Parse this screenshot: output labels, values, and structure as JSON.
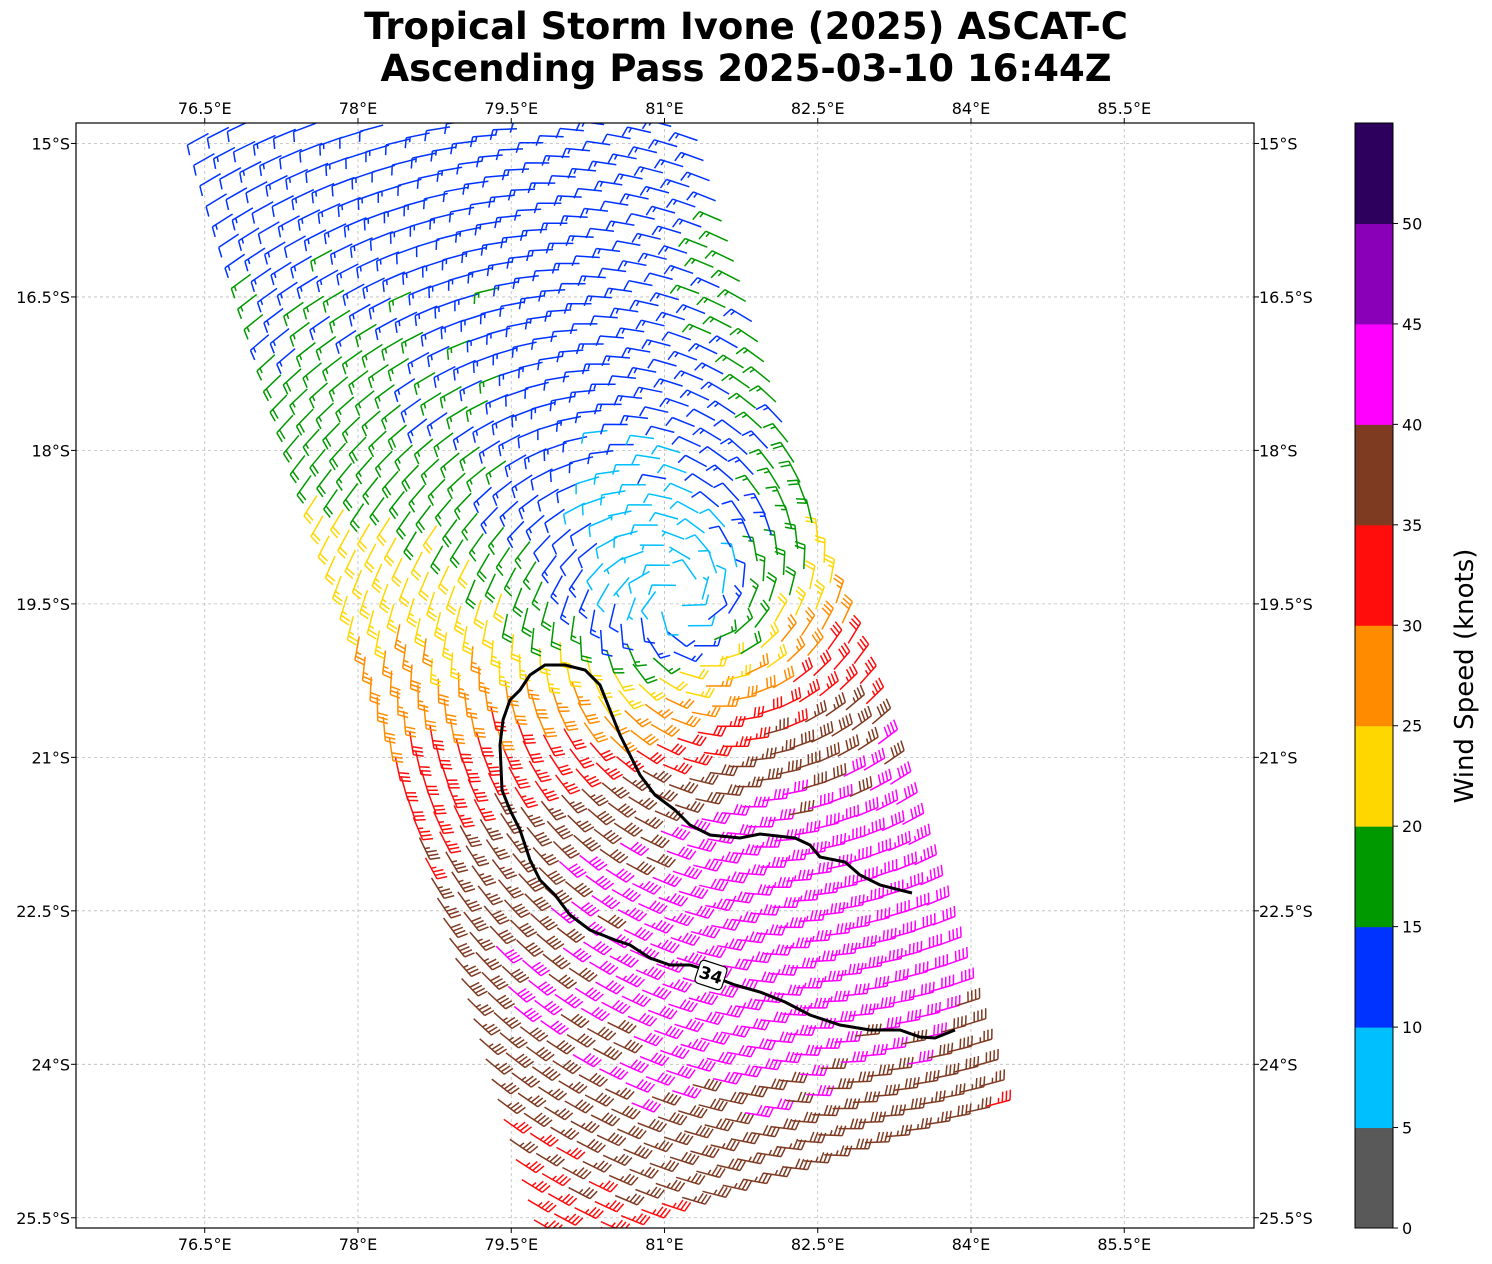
{
  "title": {
    "line1": "Tropical Storm Ivone (2025) ASCAT-C",
    "line2": "Ascending Pass 2025-03-10 16:44Z"
  },
  "map": {
    "lon_ticks": [
      "76.5°E",
      "78°E",
      "79.5°E",
      "81°E",
      "82.5°E",
      "84°E",
      "85.5°E"
    ],
    "lon_values": [
      76.5,
      78,
      79.5,
      81,
      82.5,
      84,
      85.5
    ],
    "lat_ticks": [
      "15°S",
      "16.5°S",
      "18°S",
      "19.5°S",
      "21°S",
      "22.5°S",
      "24°S",
      "25.5°S"
    ],
    "lat_values": [
      -15,
      -16.5,
      -18,
      -19.5,
      -21,
      -22.5,
      -24,
      -25.5
    ],
    "lon_range": [
      75.24,
      86.77
    ],
    "lat_range": [
      -14.8,
      -25.6
    ],
    "gridlines": true,
    "contour_label": "34",
    "contour_color": "#000000"
  },
  "colorbar": {
    "label": "Wind Speed (knots)",
    "ticks": [
      "0",
      "5",
      "10",
      "15",
      "20",
      "25",
      "30",
      "35",
      "40",
      "45",
      "50"
    ],
    "bounds": [
      0,
      5,
      10,
      15,
      20,
      25,
      30,
      35,
      40,
      45,
      50,
      55
    ],
    "colors": [
      "#595959",
      "#00bfff",
      "#0033ff",
      "#009900",
      "#ffd700",
      "#ff8c00",
      "#ff0d0d",
      "#7f3a22",
      "#ff00ff",
      "#8a00b8",
      "#2e005e"
    ]
  }
}
